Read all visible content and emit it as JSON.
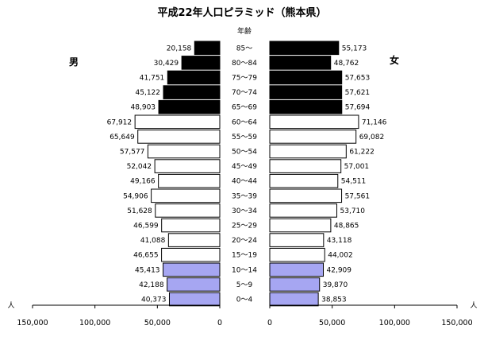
{
  "chart_data": {
    "type": "bar",
    "title": "平成22年人口ピラミッド（熊本県）",
    "age_header": "年齢",
    "categories": [
      "85～",
      "80～84",
      "75～79",
      "70～74",
      "65～69",
      "60～64",
      "55～59",
      "50～54",
      "45～49",
      "40～44",
      "35～39",
      "30～34",
      "25～29",
      "20～24",
      "15～19",
      "10～14",
      "5～9",
      "0～4"
    ],
    "series": [
      {
        "name": "男",
        "values": [
          20158,
          30429,
          41751,
          45122,
          48903,
          67912,
          65649,
          57577,
          52042,
          49166,
          54906,
          51628,
          46599,
          41088,
          46655,
          45413,
          42188,
          40373
        ]
      },
      {
        "name": "女",
        "values": [
          55173,
          48762,
          57653,
          57621,
          57694,
          71146,
          69082,
          61222,
          57001,
          54511,
          57561,
          53710,
          48865,
          43118,
          44002,
          42909,
          39870,
          38853
        ]
      }
    ],
    "value_labels": {
      "male": [
        "20,158",
        "30,429",
        "41,751",
        "45,122",
        "48,903",
        "67,912",
        "65,649",
        "57,577",
        "52,042",
        "49,166",
        "54,906",
        "51,628",
        "46,599",
        "41,088",
        "46,655",
        "45,413",
        "42,188",
        "40,373"
      ],
      "female": [
        "55,173",
        "48,762",
        "57,653",
        "57,621",
        "57,694",
        "71,146",
        "69,082",
        "61,222",
        "57,001",
        "54,511",
        "57,561",
        "53,710",
        "48,865",
        "43,118",
        "44,002",
        "42,909",
        "39,870",
        "38,853"
      ]
    },
    "age_groups": {
      "elderly_count": 5,
      "youth_count": 3
    },
    "colors": {
      "elderly": "#000000",
      "working": "#ffffff",
      "youth": "#a6a6f2",
      "stroke": "#000000"
    },
    "unit_label": "人",
    "xlim": [
      0,
      150000
    ],
    "x_ticks": [
      150000,
      100000,
      50000,
      0
    ],
    "x_tick_labels_male": [
      "150,000",
      "100,000",
      "50,000",
      "0"
    ],
    "x_tick_labels_female": [
      "0",
      "50,000",
      "100,000",
      "150,000"
    ]
  }
}
